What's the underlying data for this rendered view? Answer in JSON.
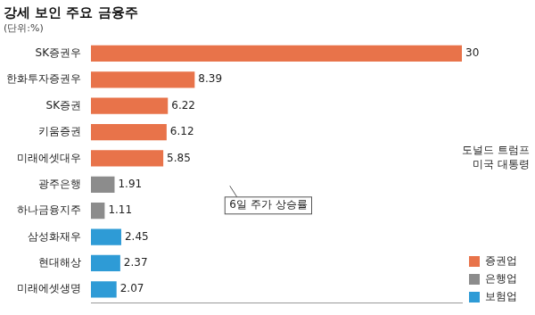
{
  "chart_data": {
    "type": "bar",
    "title": "강세 보인 주요 금융주",
    "subtitle": "(단위:%)",
    "orientation": "horizontal",
    "categories": [
      "SK증권우",
      "한화투자증권우",
      "SK증권",
      "키움증권",
      "미래에셋대우",
      "광주은행",
      "하나금융지주",
      "삼성화재우",
      "현대해상",
      "미래에셋생명"
    ],
    "series": [
      {
        "name": "증권업",
        "color": "#e8734a",
        "values": [
          30,
          8.39,
          6.22,
          6.12,
          5.85,
          null,
          null,
          null,
          null,
          null
        ]
      },
      {
        "name": "은행업",
        "color": "#8c8c8c",
        "values": [
          null,
          null,
          null,
          null,
          null,
          1.91,
          1.11,
          null,
          null,
          null
        ]
      },
      {
        "name": "보험업",
        "color": "#2e9bd6",
        "values": [
          null,
          null,
          null,
          null,
          null,
          null,
          null,
          2.45,
          2.37,
          2.07
        ]
      }
    ],
    "xlim": [
      0,
      30
    ],
    "grid": false,
    "data_labels": true,
    "tick_labels": "y",
    "legend": "lower right",
    "annotations": [
      "6일 주가 상승률",
      "도널드 트럼프\n미국 대통령"
    ]
  }
}
